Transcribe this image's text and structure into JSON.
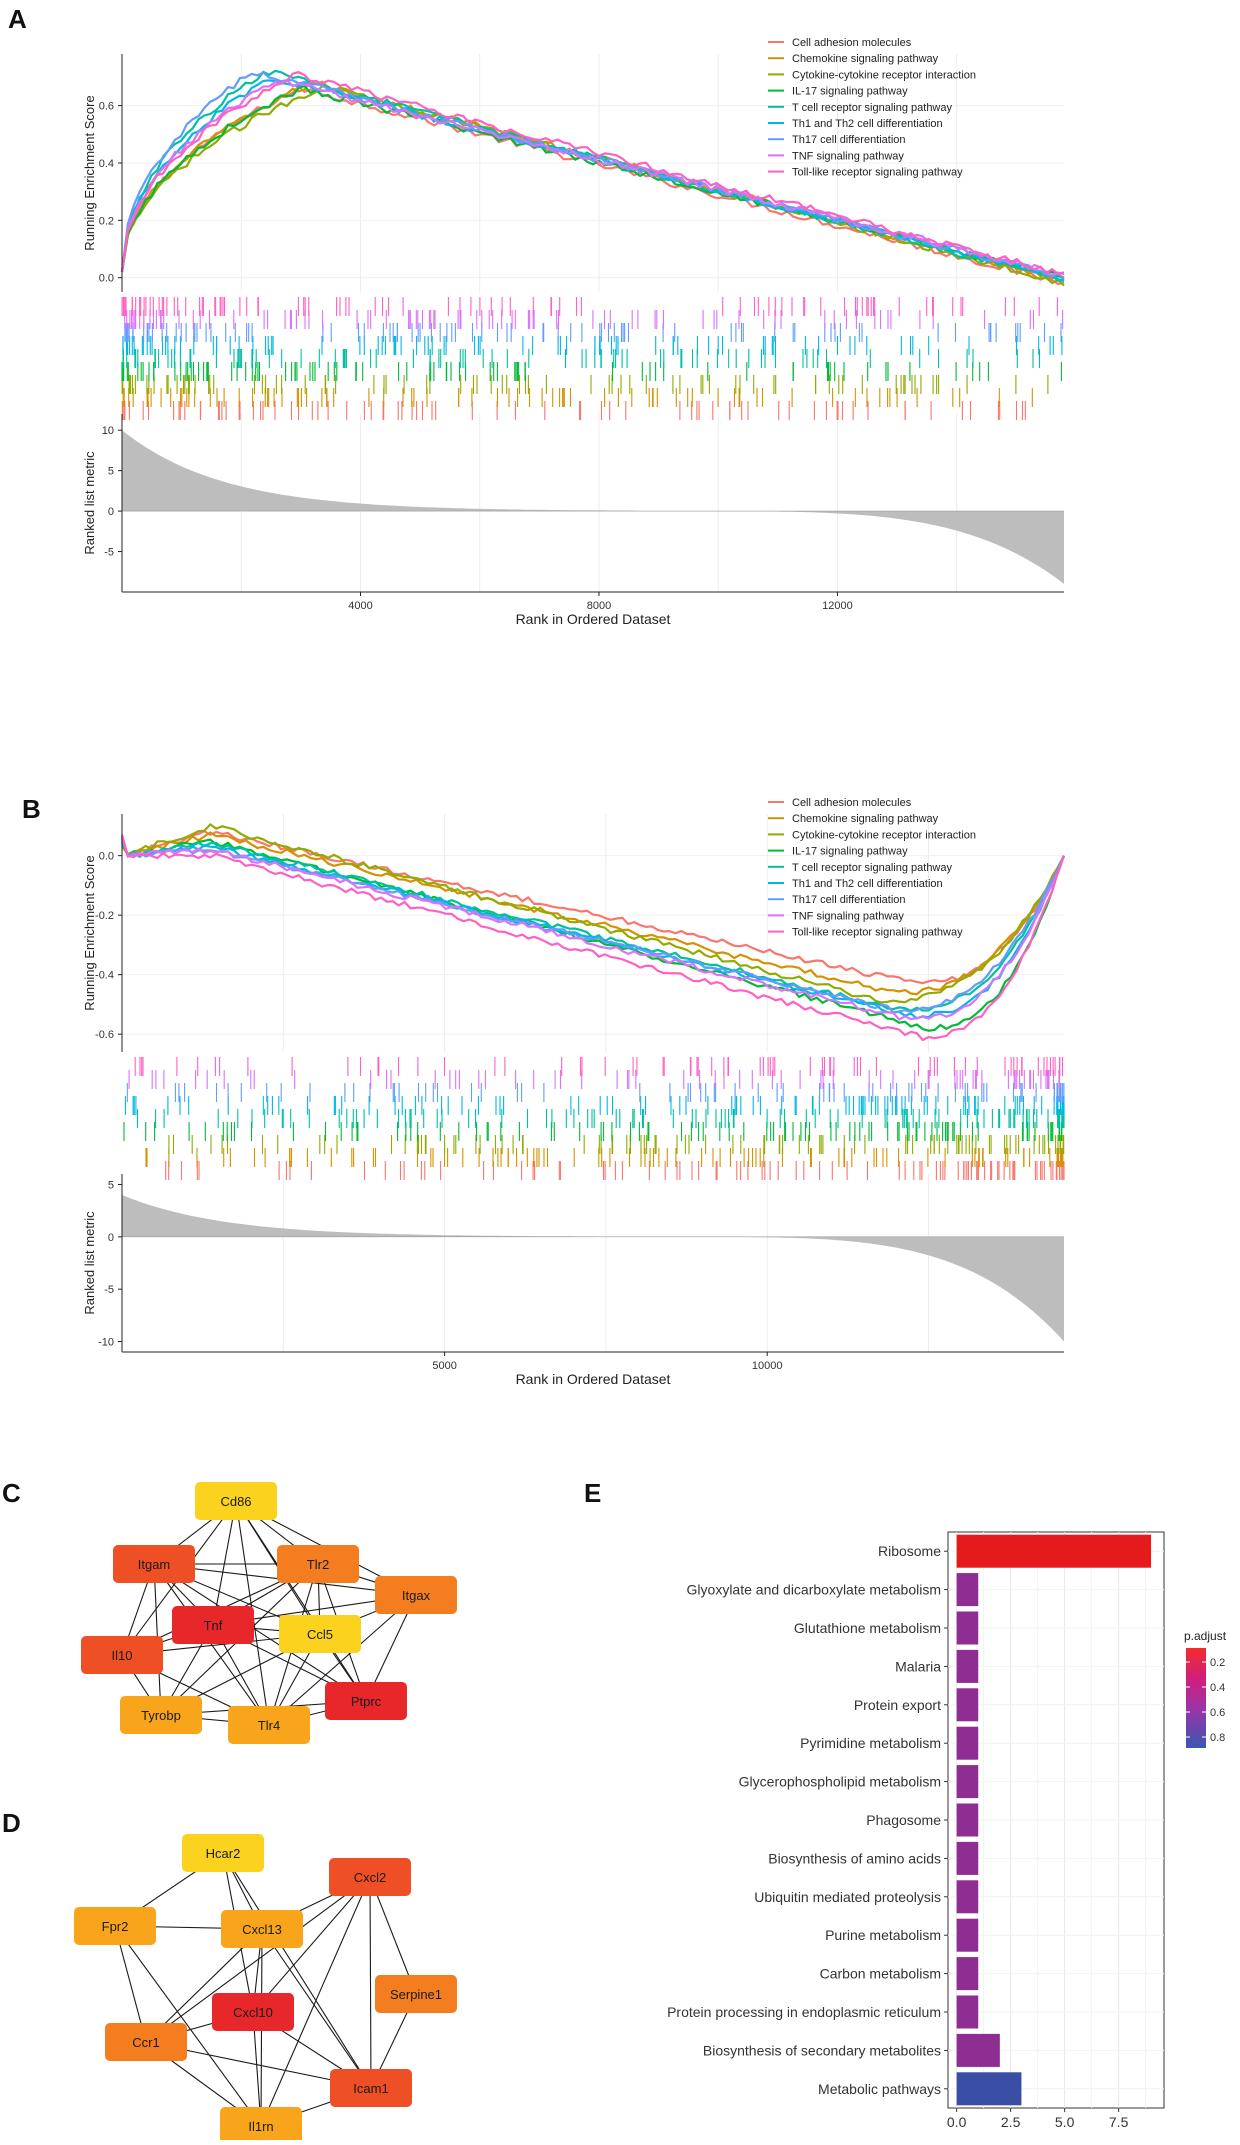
{
  "colors": {
    "pathways": [
      "#F8766D",
      "#D39200",
      "#93AA00",
      "#00BA38",
      "#00C19F",
      "#00B9E3",
      "#619CFF",
      "#DB72FB",
      "#FF61C3"
    ],
    "bar_high": "#e41a1c",
    "bar_mid": "#8e2d92",
    "bar_low": "#3b4ea5",
    "node_red": "#e8272b",
    "node_orange_red": "#ef4f25",
    "node_orange": "#f47d20",
    "node_amber": "#f9a51c",
    "node_yellow": "#fbd21e",
    "grey_metric": "#bdbdbd"
  },
  "panels": {
    "a": "A",
    "b": "B",
    "c": "C",
    "d": "D",
    "e": "E"
  },
  "chart_data": [
    {
      "id": "A",
      "type": "line",
      "legend": [
        "Cell adhesion molecules",
        "Chemokine signaling pathway",
        "Cytokine-cytokine receptor interaction",
        "IL-17 signaling pathway",
        "T cell receptor signaling pathway",
        "Th1 and Th2 cell differentiation",
        "Th17 cell differentiation",
        "TNF signaling pathway",
        "Toll-like receptor signaling pathway"
      ],
      "ylabel_top": "Running Enrichment Score",
      "ylabel_bottom": "Ranked list metric",
      "xlabel": "Rank in Ordered Dataset",
      "xlim": [
        0,
        15800
      ],
      "ylim_top": [
        -0.05,
        0.78
      ],
      "ylim_bottom": [
        -10,
        12
      ],
      "x_ticks": [
        4000,
        8000,
        12000
      ],
      "x_tick_labels": [
        "4000",
        "8000",
        "12000"
      ],
      "y_ticks_top": [
        0.0,
        0.2,
        0.4,
        0.6
      ],
      "y_tick_labels_top": [
        "0.0",
        "0.2",
        "0.4",
        "0.6"
      ],
      "y_ticks_bottom": [
        10,
        5,
        0,
        -5
      ],
      "y_tick_labels_bottom": [
        "10",
        "5",
        "0",
        "-5"
      ],
      "peaks": [
        0.66,
        0.68,
        0.67,
        0.66,
        0.72,
        0.7,
        0.72,
        0.69,
        0.71
      ],
      "peak_rank": [
        3000,
        3200,
        3400,
        3000,
        2400,
        2500,
        2200,
        2600,
        2900
      ],
      "end_value": [
        -0.02,
        -0.01,
        -0.02,
        0.0,
        -0.01,
        0.0,
        0.0,
        0.01,
        0.01
      ],
      "metric_start": 10,
      "metric_end": -9
    },
    {
      "id": "B",
      "type": "line",
      "legend": [
        "Cell adhesion molecules",
        "Chemokine signaling pathway",
        "Cytokine-cytokine receptor interaction",
        "IL-17 signaling pathway",
        "T cell receptor signaling pathway",
        "Th1 and Th2 cell differentiation",
        "Th17 cell differentiation",
        "TNF signaling pathway",
        "Toll-like receptor signaling pathway"
      ],
      "ylabel_top": "Running Enrichment Score",
      "ylabel_bottom": "Ranked list metric",
      "xlabel": "Rank in Ordered Dataset",
      "xlim": [
        0,
        14600
      ],
      "ylim_top": [
        -0.66,
        0.14
      ],
      "ylim_bottom": [
        -11,
        6
      ],
      "x_ticks": [
        5000,
        10000
      ],
      "x_tick_labels": [
        "5000",
        "10000"
      ],
      "y_ticks_top": [
        0.0,
        -0.2,
        -0.4,
        -0.6
      ],
      "y_tick_labels_top": [
        "0.0",
        "-0.2",
        "-0.4",
        "-0.6"
      ],
      "y_ticks_bottom": [
        5,
        0,
        -5,
        -10
      ],
      "y_tick_labels_bottom": [
        "5",
        "0",
        "-5",
        "-10"
      ],
      "mins": [
        -0.43,
        -0.46,
        -0.49,
        -0.58,
        -0.52,
        -0.54,
        -0.52,
        -0.55,
        -0.61
      ],
      "min_rank": [
        12300,
        12000,
        11800,
        12500,
        12100,
        12300,
        12000,
        12200,
        12400
      ],
      "start_peak": [
        0.08,
        0.07,
        0.1,
        0.05,
        0.04,
        0.03,
        0.02,
        0.02,
        0.0
      ],
      "metric_start": 4,
      "metric_end": -10
    },
    {
      "id": "E",
      "type": "bar",
      "categories": [
        "Ribosome",
        "Glyoxylate and dicarboxylate metabolism",
        "Glutathione metabolism",
        "Malaria",
        "Protein export",
        "Pyrimidine metabolism",
        "Glycerophospholipid metabolism",
        "Phagosome",
        "Biosynthesis of amino acids",
        "Ubiquitin mediated proteolysis",
        "Purine metabolism",
        "Carbon metabolism",
        "Protein processing in endoplasmic reticulum",
        "Biosynthesis of secondary metabolites",
        "Metabolic pathways"
      ],
      "values": [
        9,
        1,
        1,
        1,
        1,
        1,
        1,
        1,
        1,
        1,
        1,
        1,
        1,
        2,
        3
      ],
      "p_adjust": [
        0.05,
        0.6,
        0.6,
        0.6,
        0.6,
        0.6,
        0.6,
        0.6,
        0.6,
        0.6,
        0.6,
        0.6,
        0.6,
        0.6,
        0.85
      ],
      "xlim": [
        -0.4,
        9.6
      ],
      "x_ticks": [
        0,
        2.5,
        5,
        7.5
      ],
      "x_tick_labels": [
        "0.0",
        "2.5",
        "5.0",
        "7.5"
      ],
      "legend_title": "p.adjust",
      "legend_ticks": [
        "0.2",
        "0.4",
        "0.6",
        "0.8"
      ]
    }
  ],
  "network_c": {
    "nodes": [
      {
        "label": "Cd86",
        "tone": "yellow"
      },
      {
        "label": "Itgam",
        "tone": "orange_red"
      },
      {
        "label": "Tlr2",
        "tone": "orange"
      },
      {
        "label": "Itgax",
        "tone": "orange"
      },
      {
        "label": "Tnf",
        "tone": "red"
      },
      {
        "label": "Ccl5",
        "tone": "yellow"
      },
      {
        "label": "Il10",
        "tone": "orange_red"
      },
      {
        "label": "Ptprc",
        "tone": "red"
      },
      {
        "label": "Tyrobp",
        "tone": "amber"
      },
      {
        "label": "Tlr4",
        "tone": "amber"
      }
    ]
  },
  "network_d": {
    "nodes": [
      {
        "label": "Hcar2",
        "tone": "yellow"
      },
      {
        "label": "Cxcl2",
        "tone": "orange_red"
      },
      {
        "label": "Fpr2",
        "tone": "amber"
      },
      {
        "label": "Cxcl13",
        "tone": "amber"
      },
      {
        "label": "Serpine1",
        "tone": "orange"
      },
      {
        "label": "Cxcl10",
        "tone": "red"
      },
      {
        "label": "Ccr1",
        "tone": "orange"
      },
      {
        "label": "Icam1",
        "tone": "orange_red"
      },
      {
        "label": "Il1rn",
        "tone": "amber"
      }
    ]
  }
}
